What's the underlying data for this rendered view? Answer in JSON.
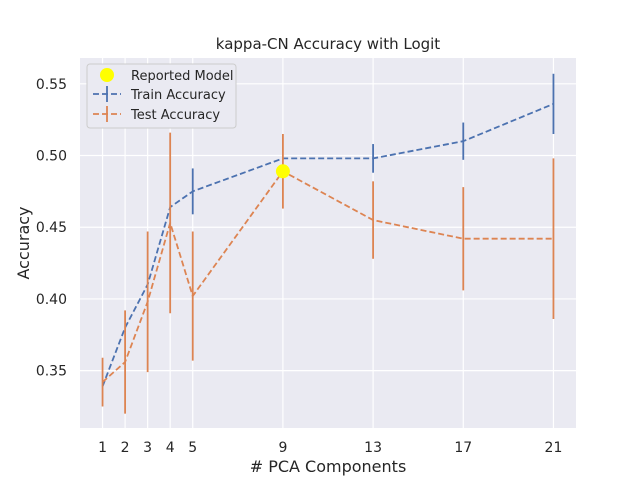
{
  "chart_data": {
    "type": "line",
    "title": "kappa-CN Accuracy with Logit",
    "xlabel": "# PCA Components",
    "ylabel": "Accuracy",
    "x": [
      1,
      2,
      3,
      4,
      5,
      9,
      13,
      17,
      21
    ],
    "xticks": [
      "1",
      "2",
      "3",
      "4",
      "5",
      "9",
      "13",
      "17",
      "21"
    ],
    "yticks": [
      "0.35",
      "0.40",
      "0.45",
      "0.50",
      "0.55"
    ],
    "xlim": [
      0,
      22
    ],
    "ylim": [
      0.31,
      0.568
    ],
    "grid": true,
    "legend_position": "top-left",
    "series": [
      {
        "name": "Train Accuracy",
        "color": "#4c72b0",
        "values": [
          0.339,
          0.38,
          0.41,
          0.464,
          0.475,
          0.498,
          0.498,
          0.51,
          0.536
        ],
        "errors": [
          0.0,
          0.0,
          0.0,
          0.0,
          0.016,
          0.0,
          0.01,
          0.013,
          0.021
        ]
      },
      {
        "name": "Test Accuracy",
        "color": "#dd8452",
        "values": [
          0.342,
          0.356,
          0.398,
          0.453,
          0.402,
          0.489,
          0.455,
          0.442,
          0.442
        ],
        "errors": [
          0.017,
          0.036,
          0.049,
          0.063,
          0.045,
          0.026,
          0.027,
          0.036,
          0.056
        ]
      }
    ],
    "reported_model": {
      "name": "Reported Model",
      "x": 9,
      "y": 0.489,
      "color": "#ffff00"
    }
  }
}
